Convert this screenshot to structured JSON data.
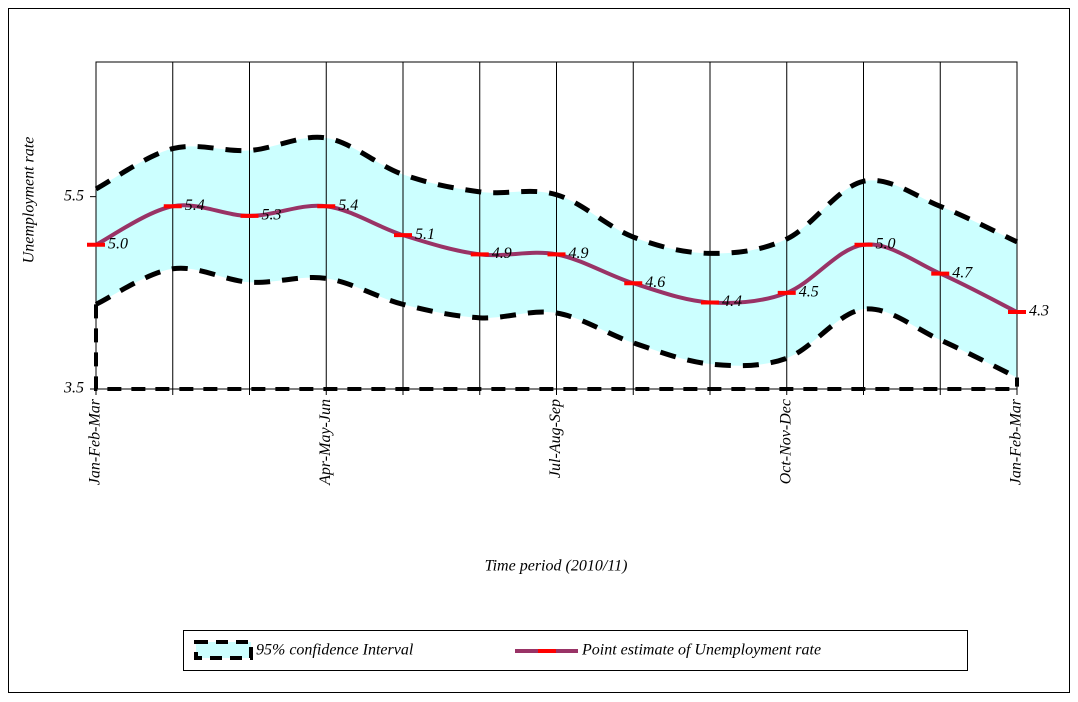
{
  "chart_data": {
    "type": "line",
    "x_label": "Time period (2010/11)",
    "y_label": "Unemployment rate",
    "categories": [
      "Jan-Feb-Mar",
      null,
      null,
      "Apr-May-Jun",
      null,
      null,
      "Jul-Aug-Sep",
      null,
      null,
      "Oct-Nov-Dec",
      null,
      null,
      "Jan-Feb-Mar"
    ],
    "ylim": [
      3.5,
      6.9
    ],
    "yticks": [
      3.5,
      5.5
    ],
    "grid": true,
    "series": [
      {
        "name": "95% confidence Interval",
        "color": "#ccffff",
        "upper": [
          5.58,
          6.0,
          5.98,
          6.11,
          5.73,
          5.55,
          5.52,
          5.08,
          4.91,
          5.06,
          5.66,
          5.4,
          5.03
        ],
        "lower": [
          4.38,
          4.75,
          4.61,
          4.65,
          4.38,
          4.24,
          4.29,
          3.98,
          3.76,
          3.82,
          4.33,
          4.01,
          3.62
        ]
      },
      {
        "name": "Point estimate of Unemployment rate",
        "color": "#993366",
        "marker_color": "#ff0000",
        "values": [
          5.0,
          5.4,
          5.3,
          5.4,
          5.1,
          4.9,
          4.9,
          4.6,
          4.4,
          4.5,
          5.0,
          4.7,
          4.3
        ],
        "value_labels": [
          "5.0",
          "5.4",
          "5.3",
          "5.4",
          "5.1",
          "4.9",
          "4.9",
          "4.6",
          "4.4",
          "4.5",
          "5.0",
          "4.7",
          "4.3"
        ]
      }
    ]
  }
}
